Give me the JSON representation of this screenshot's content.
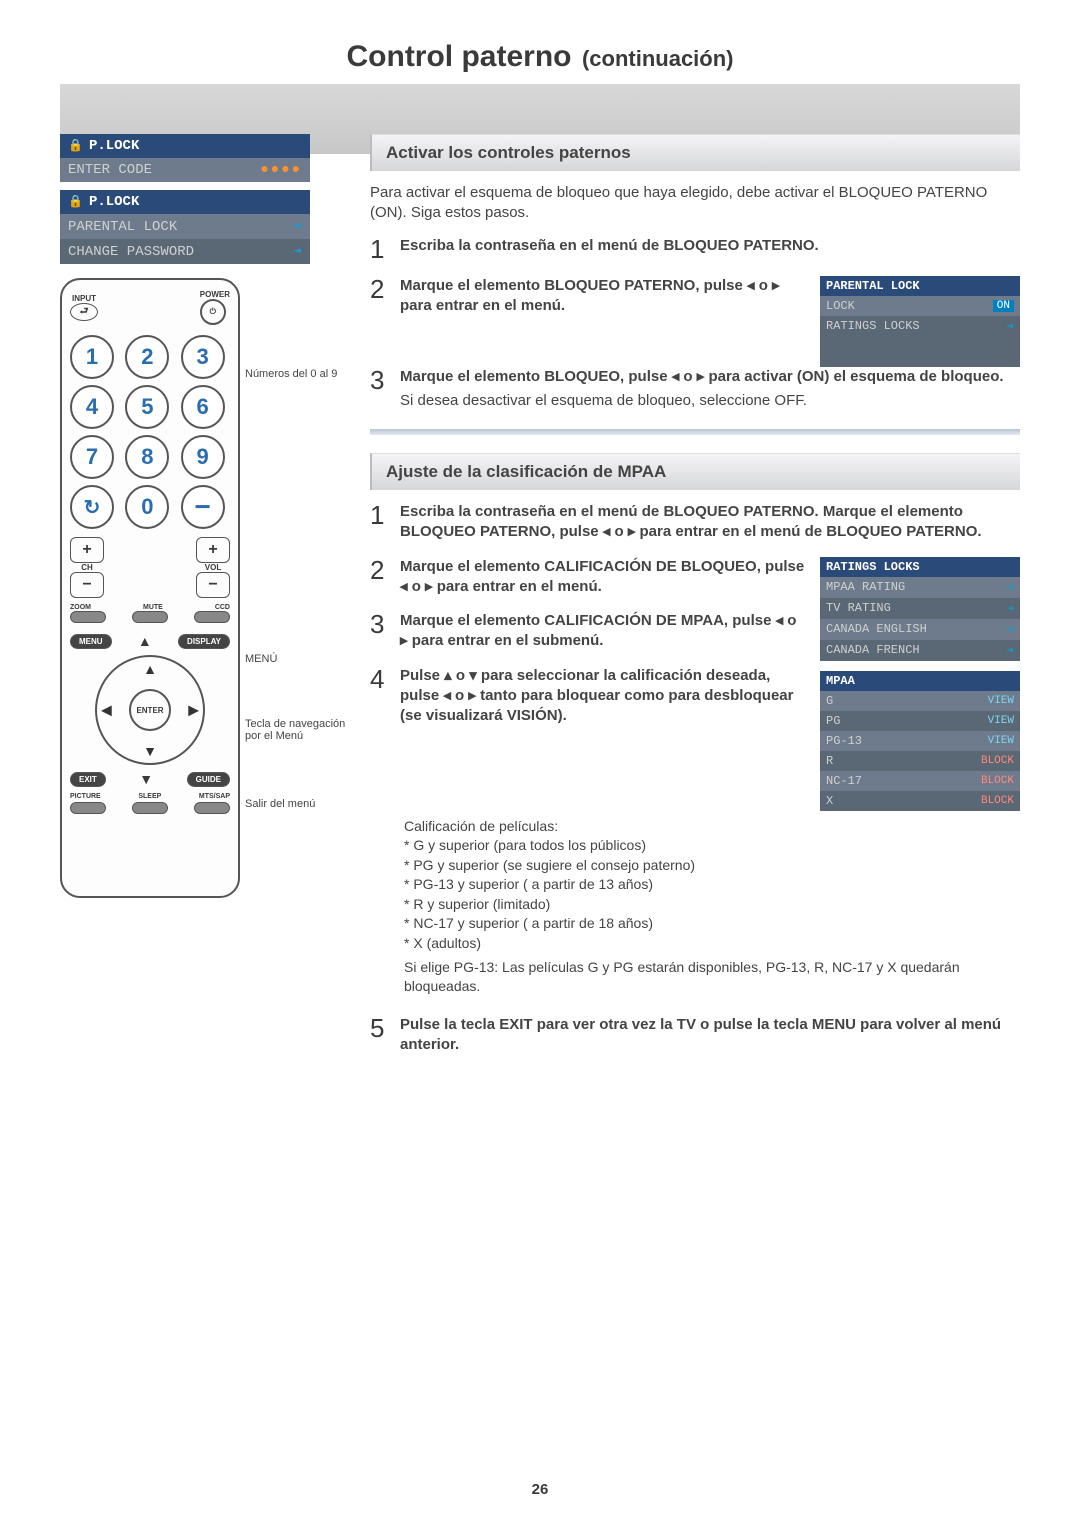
{
  "page": {
    "title_main": "Control paterno",
    "title_sub": "(continuación)",
    "page_number": "26"
  },
  "osd_enter": {
    "header": "P.LOCK",
    "row1_label": "ENTER CODE",
    "row1_value": "●●●●"
  },
  "osd_plock": {
    "header": "P.LOCK",
    "row1": "PARENTAL LOCK",
    "row2": "CHANGE PASSWORD"
  },
  "remote": {
    "input_label": "INPUT",
    "power_label": "POWER",
    "ch_label": "CH",
    "vol_label": "VOL",
    "zoom_label": "ZOOM",
    "mute_label": "MUTE",
    "ccd_label": "CCD",
    "menu_btn": "MENU",
    "display_btn": "DISPLAY",
    "enter_btn": "ENTER",
    "exit_btn": "EXIT",
    "guide_btn": "GUIDE",
    "picture_label": "PICTURE",
    "sleep_label": "SLEEP",
    "mts_label": "MTS/SAP",
    "nums": [
      "1",
      "2",
      "3",
      "4",
      "5",
      "6",
      "7",
      "8",
      "9",
      "0"
    ]
  },
  "callouts": {
    "numeros": "Números del 0 al 9",
    "menu": "MENÚ",
    "nav": "Tecla de navegación",
    "nav2": "por el Menú",
    "salir": "Salir del menú"
  },
  "section1": {
    "heading": "Activar los controles paternos",
    "intro": "Para activar el esquema de bloqueo que haya elegido, debe activar el BLOQUEO PATERNO (ON). Siga estos pasos.",
    "step1": "Escriba la contraseña en el menú de BLOQUEO PATERNO.",
    "step2": "Marque el elemento BLOQUEO PATERNO, pulse ◂ o ▸ para entrar en el menú.",
    "step3a": "Marque el elemento BLOQUEO, pulse ◂ o ▸ para activar (ON) el esquema de bloqueo.",
    "step3b": "Si desea desactivar el esquema de bloqueo, seleccione OFF."
  },
  "osd_parental": {
    "header": "PARENTAL LOCK",
    "row1_label": "LOCK",
    "row1_value": "ON",
    "row2_label": "RATINGS LOCKS"
  },
  "section2": {
    "heading": "Ajuste de la clasificación de MPAA",
    "step1": "Escriba la contraseña en el menú de BLOQUEO PATERNO. Marque el elemento BLOQUEO PATERNO, pulse ◂ o ▸ para entrar en el menú de BLOQUEO PATERNO.",
    "step2": "Marque el elemento CALIFICACIÓN DE BLOQUEO, pulse ◂ o ▸ para entrar en el menú.",
    "step3": "Marque el elemento CALIFICACIÓN DE MPAA, pulse ◂ o ▸ para entrar en el submenú.",
    "step4": "Pulse ▴ o ▾ para seleccionar la calificación deseada, pulse ◂ o ▸ tanto para bloquear como para desbloquear (se visualizará VISIÓN).",
    "ratings_intro": "Calificación de películas:",
    "ratings": [
      "* G y superior (para todos los públicos)",
      "* PG y superior (se sugiere el consejo paterno)",
      "* PG-13 y superior ( a partir de 13 años)",
      "* R y superior (limitado)",
      "* NC-17 y superior ( a partir de 18 años)",
      "* X (adultos)"
    ],
    "ratings_note": "Si elige PG-13: Las películas G y PG estarán disponibles, PG-13, R, NC-17 y X quedarán bloqueadas.",
    "step5": "Pulse la tecla EXIT para ver otra vez la TV o pulse la tecla MENU para volver al menú anterior."
  },
  "osd_ratings": {
    "header": "RATINGS LOCKS",
    "rows": [
      "MPAA RATING",
      "TV RATING",
      "CANADA ENGLISH",
      "CANADA FRENCH"
    ]
  },
  "osd_mpaa": {
    "header": "MPAA",
    "rows": [
      {
        "label": "G",
        "tag": "VIEW",
        "cls": "view-tag"
      },
      {
        "label": "PG",
        "tag": "VIEW",
        "cls": "view-tag"
      },
      {
        "label": "PG-13",
        "tag": "VIEW",
        "cls": "view-tag"
      },
      {
        "label": "R",
        "tag": "BLOCK",
        "cls": "block-tag"
      },
      {
        "label": "NC-17",
        "tag": "BLOCK",
        "cls": "block-tag"
      },
      {
        "label": "X",
        "tag": "BLOCK",
        "cls": "block-tag"
      }
    ]
  }
}
